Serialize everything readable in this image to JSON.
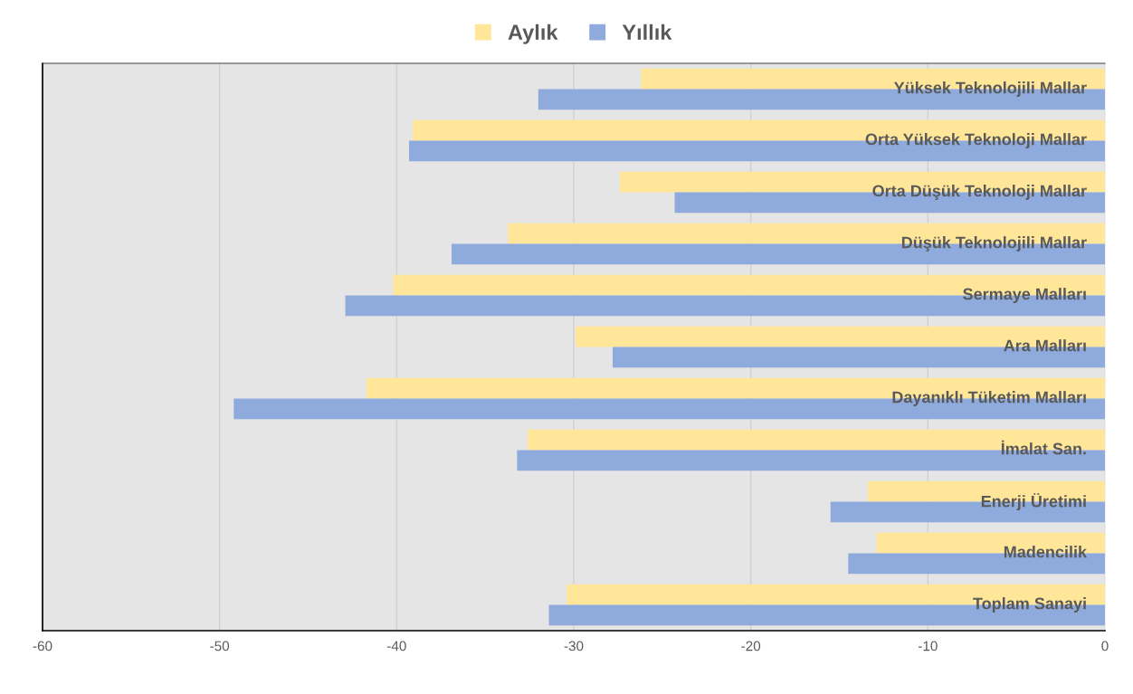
{
  "chart_data": {
    "type": "bar",
    "orientation": "horizontal",
    "categories": [
      "Yüksek Teknolojili Mallar",
      "Orta Yüksek Teknoloji Mallar",
      "Orta Düşük Teknoloji Mallar",
      "Düşük Teknolojili Mallar",
      "Sermaye Malları",
      "Ara Malları",
      "Dayanıklı Tüketim Malları",
      "İmalat San.",
      "Enerji Üretimi",
      "Madencilik",
      "Toplam Sanayi"
    ],
    "series": [
      {
        "name": "Aylık",
        "color": "#ffe699",
        "values": [
          -26.2,
          -39.1,
          -27.4,
          -33.7,
          -40.2,
          -29.9,
          -41.7,
          -32.6,
          -13.4,
          -12.9,
          -30.4
        ]
      },
      {
        "name": "Yıllık",
        "color": "#8faadc",
        "values": [
          -32.0,
          -39.3,
          -24.3,
          -36.9,
          -42.9,
          -27.8,
          -49.2,
          -33.2,
          -15.5,
          -14.5,
          -31.4
        ]
      }
    ],
    "xlim": [
      -60,
      0
    ],
    "xticks": [
      -60,
      -50,
      -40,
      -30,
      -20,
      -10,
      0
    ],
    "grid": "x",
    "legend": "top"
  }
}
